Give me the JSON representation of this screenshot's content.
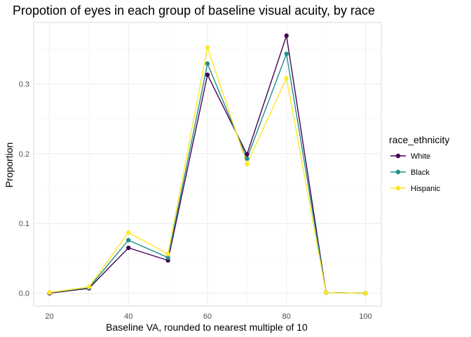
{
  "chart_data": {
    "type": "line",
    "title": "Propotion of eyes in each group of baseline visual acuity, by race",
    "xlabel": "Baseline VA, rounded to nearest multiple of 10",
    "ylabel": "Proportion",
    "x": [
      20,
      30,
      40,
      50,
      60,
      70,
      80,
      90,
      100
    ],
    "xlim": [
      16,
      104
    ],
    "ylim": [
      -0.0185,
      0.388
    ],
    "x_ticks": [
      "20",
      "40",
      "60",
      "80",
      "100"
    ],
    "y_ticks": [
      "0.0",
      "0.1",
      "0.2",
      "0.3"
    ],
    "grid": true,
    "legend": {
      "title": "race_ethnicity",
      "position": "right"
    },
    "series": [
      {
        "name": "White",
        "color": "#440154",
        "values": [
          0.0,
          0.007,
          0.065,
          0.047,
          0.313,
          0.199,
          0.369,
          0.001,
          0.0
        ]
      },
      {
        "name": "Black",
        "color": "#21908C",
        "values": [
          0.001,
          0.008,
          0.076,
          0.051,
          0.329,
          0.193,
          0.343,
          0.001,
          0.0
        ]
      },
      {
        "name": "Hispanic",
        "color": "#FDE725",
        "values": [
          0.001,
          0.009,
          0.087,
          0.056,
          0.352,
          0.185,
          0.308,
          0.001,
          0.0
        ]
      }
    ]
  }
}
